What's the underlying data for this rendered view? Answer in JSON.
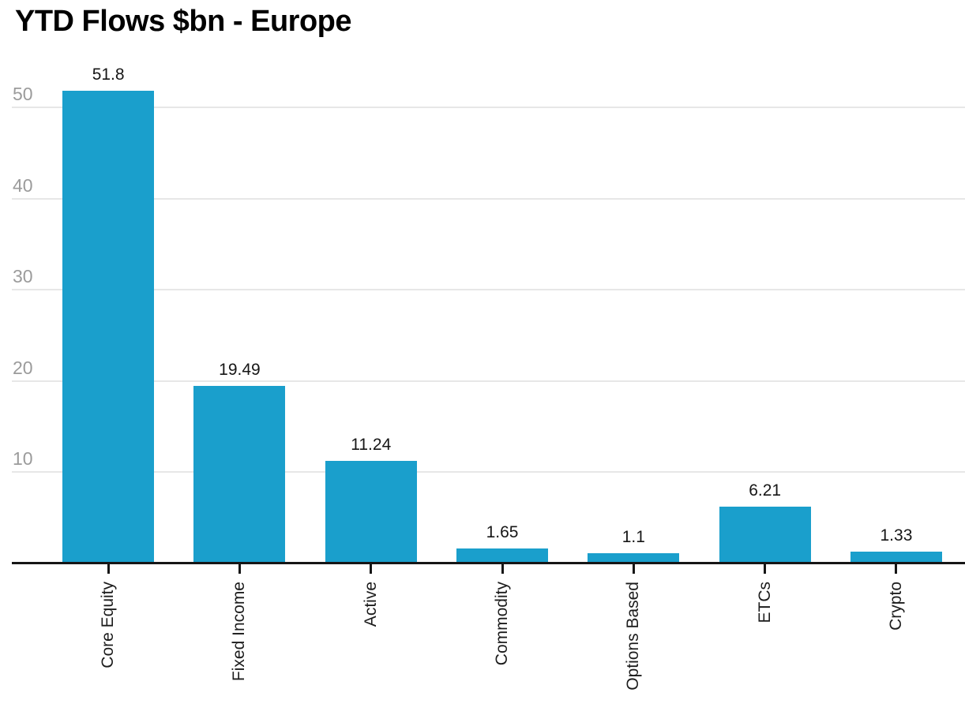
{
  "chart_data": {
    "type": "bar",
    "title": "YTD Flows $bn - Europe",
    "categories": [
      "Core Equity",
      "Fixed Income",
      "Active",
      "Commodity",
      "Options Based",
      "ETCs",
      "Crypto"
    ],
    "values": [
      51.8,
      19.49,
      11.24,
      1.65,
      1.1,
      6.21,
      1.33
    ],
    "value_labels": [
      "51.8",
      "19.49",
      "11.24",
      "1.65",
      "1.1",
      "6.21",
      "1.33"
    ],
    "xlabel": "",
    "ylabel": "",
    "ylim": [
      0,
      52
    ],
    "yticks": [
      10,
      20,
      30,
      40,
      50
    ],
    "ytick_labels": [
      "10",
      "20",
      "30",
      "40",
      "50"
    ],
    "grid": "horizontal gridlines on",
    "legend": "none",
    "colors": {
      "bar_fill": "#1a9fcc",
      "axis_line": "#161616",
      "tick_mark": "#161616",
      "grid_line": "#e7e7e7",
      "ytick_text": "#9b9b9b",
      "value_text": "#161616",
      "category_text": "#1c1c1c",
      "title_text": "#000000",
      "background": "#ffffff"
    }
  }
}
